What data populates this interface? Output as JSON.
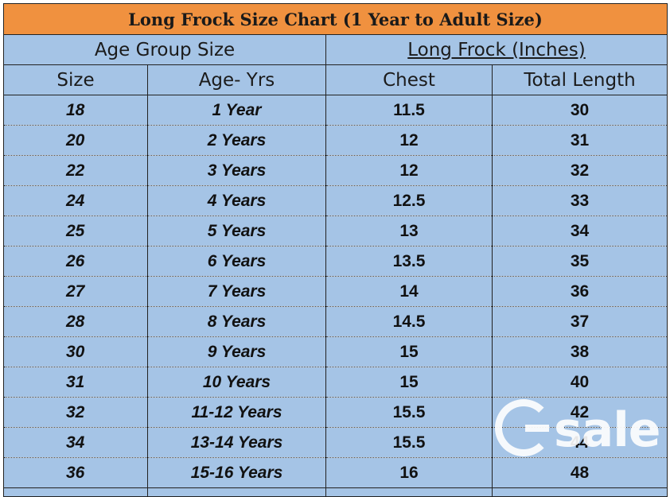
{
  "title": "Long Frock Size Chart (1 Year to Adult Size)",
  "groups": {
    "age_group": "Age Group Size",
    "long_frock": "Long Frock (Inches)"
  },
  "columns": [
    "Size",
    "Age- Yrs",
    "Chest",
    "Total Length"
  ],
  "rows": [
    {
      "size": "18",
      "age": "1 Year",
      "chest": "11.5",
      "length": "30"
    },
    {
      "size": "20",
      "age": "2 Years",
      "chest": "12",
      "length": "31"
    },
    {
      "size": "22",
      "age": "3 Years",
      "chest": "12",
      "length": "32"
    },
    {
      "size": "24",
      "age": "4 Years",
      "chest": "12.5",
      "length": "33"
    },
    {
      "size": "25",
      "age": "5 Years",
      "chest": "13",
      "length": "34"
    },
    {
      "size": "26",
      "age": "6 Years",
      "chest": "13.5",
      "length": "35"
    },
    {
      "size": "27",
      "age": "7 Years",
      "chest": "14",
      "length": "36"
    },
    {
      "size": "28",
      "age": "8 Years",
      "chest": "14.5",
      "length": "37"
    },
    {
      "size": "30",
      "age": "9 Years",
      "chest": "15",
      "length": "38"
    },
    {
      "size": "31",
      "age": "10 Years",
      "chest": "15",
      "length": "40"
    },
    {
      "size": "32",
      "age": "11-12 Years",
      "chest": "15.5",
      "length": "42"
    },
    {
      "size": "34",
      "age": "13-14 Years",
      "chest": "15.5",
      "length": "44"
    },
    {
      "size": "36",
      "age": "15-16 Years",
      "chest": "16",
      "length": "48"
    }
  ],
  "watermark": {
    "text": "sale",
    "icon": "gsale-logo-icon"
  }
}
